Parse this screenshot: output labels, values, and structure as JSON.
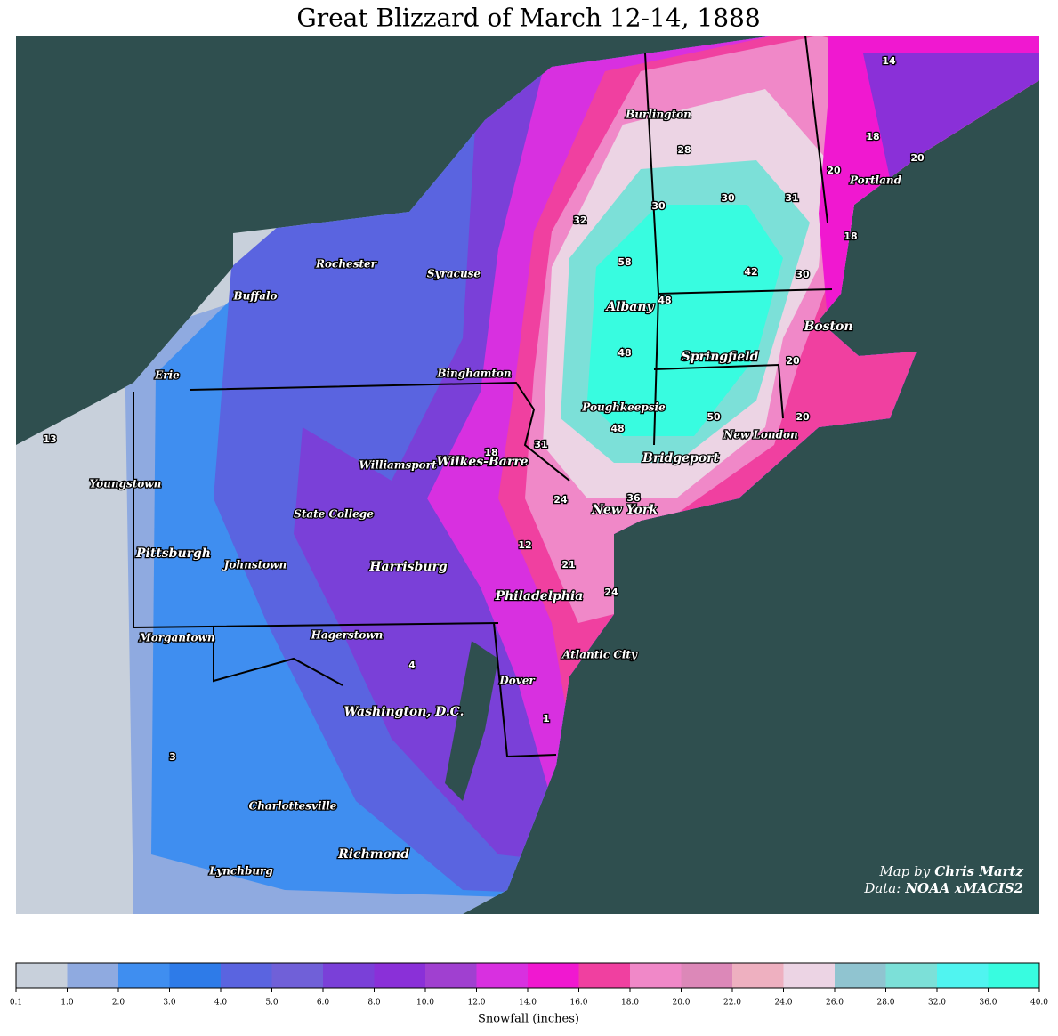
{
  "header": {
    "title": "Great Blizzard of March 12-14, 1888"
  },
  "map": {
    "cities": [
      "Burlington",
      "Portland",
      "Rochester",
      "Syracuse",
      "Buffalo",
      "Albany",
      "Boston",
      "Erie",
      "Binghamton",
      "Springfield",
      "Poughkeepsie",
      "New London",
      "Williamsport",
      "Wilkes-Barre",
      "Bridgeport",
      "Youngstown",
      "New York",
      "State College",
      "Pittsburgh",
      "Johnstown",
      "Harrisburg",
      "Philadelphia",
      "Morgantown",
      "Hagerstown",
      "Atlantic City",
      "Dover",
      "Washington, D.C.",
      "Charlottesville",
      "Richmond",
      "Lynchburg"
    ],
    "spot_values": [
      14,
      18,
      20,
      20,
      28,
      30,
      30,
      31,
      32,
      58,
      18,
      42,
      30,
      48,
      48,
      20,
      20,
      50,
      48,
      18,
      31,
      24,
      36,
      12,
      21,
      24,
      4,
      1,
      3,
      13
    ],
    "credits": {
      "map_by": "Map by",
      "author": "Chris Martz",
      "data_by": "Data:",
      "source": "NOAA xMACIS2"
    }
  },
  "colorbar": {
    "label": "Snowfall (inches)",
    "ticks": [
      "0.1",
      "1.0",
      "2.0",
      "3.0",
      "4.0",
      "5.0",
      "6.0",
      "8.0",
      "10.0",
      "12.0",
      "14.0",
      "16.0",
      "18.0",
      "20.0",
      "22.0",
      "24.0",
      "26.0",
      "28.0",
      "32.0",
      "36.0",
      "40.0"
    ],
    "colors": [
      "#c8d0db",
      "#8faae0",
      "#3f8ef0",
      "#2e7be8",
      "#5a64e0",
      "#7060d8",
      "#7a40d8",
      "#8a30d8",
      "#a040d0",
      "#d830e0",
      "#f018d0",
      "#f040a0",
      "#f088c8",
      "#dc88b8",
      "#eeb0c0",
      "#ecd4e4",
      "#90c4d0",
      "#7ce0d8",
      "#50f4f0",
      "#38fce0"
    ]
  }
}
